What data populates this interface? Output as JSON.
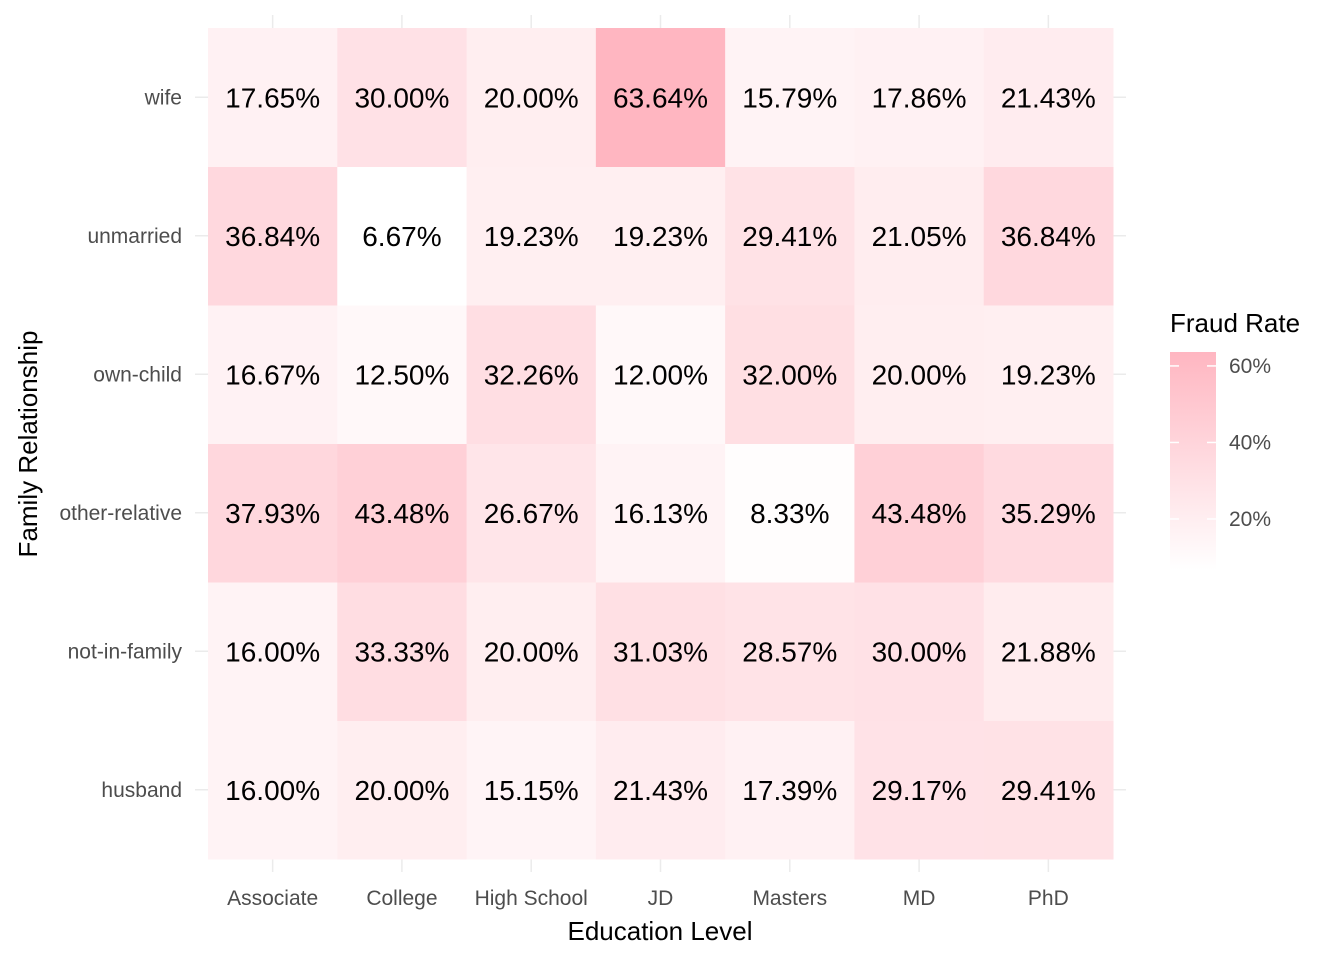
{
  "chart_data": {
    "type": "heatmap",
    "xlabel": "Education Level",
    "ylabel": "Family Relationship",
    "x_categories": [
      "Associate",
      "College",
      "High School",
      "JD",
      "Masters",
      "MD",
      "PhD"
    ],
    "y_categories": [
      "husband",
      "not-in-family",
      "other-relative",
      "own-child",
      "unmarried",
      "wife"
    ],
    "values": [
      [
        16.0,
        20.0,
        15.15,
        21.43,
        17.39,
        29.17,
        29.41
      ],
      [
        16.0,
        33.33,
        20.0,
        31.03,
        28.57,
        30.0,
        21.88
      ],
      [
        37.93,
        43.48,
        26.67,
        16.13,
        8.33,
        43.48,
        35.29
      ],
      [
        16.67,
        12.5,
        32.26,
        12.0,
        32.0,
        20.0,
        19.23
      ],
      [
        36.84,
        6.67,
        19.23,
        19.23,
        29.41,
        21.05,
        36.84
      ],
      [
        17.65,
        30.0,
        20.0,
        63.64,
        15.79,
        17.86,
        21.43
      ]
    ],
    "cell_labels": [
      [
        "16.00%",
        "20.00%",
        "15.15%",
        "21.43%",
        "17.39%",
        "29.17%",
        "29.41%"
      ],
      [
        "16.00%",
        "33.33%",
        "20.00%",
        "31.03%",
        "28.57%",
        "30.00%",
        "21.88%"
      ],
      [
        "37.93%",
        "43.48%",
        "26.67%",
        "16.13%",
        "8.33%",
        "43.48%",
        "35.29%"
      ],
      [
        "16.67%",
        "12.50%",
        "32.26%",
        "12.00%",
        "32.00%",
        "20.00%",
        "19.23%"
      ],
      [
        "36.84%",
        "6.67%",
        "19.23%",
        "19.23%",
        "29.41%",
        "21.05%",
        "36.84%"
      ],
      [
        "17.65%",
        "30.00%",
        "20.00%",
        "63.64%",
        "15.79%",
        "17.86%",
        "21.43%"
      ]
    ],
    "value_range": [
      6.67,
      63.64
    ],
    "color_low": "#ffffff",
    "color_high": "#ffb6c1",
    "grid": true,
    "legend": {
      "title": "Fraud Rate",
      "placement": "right",
      "ticks": [
        20,
        40,
        60
      ],
      "tick_labels": [
        "20%",
        "40%",
        "60%"
      ]
    }
  }
}
